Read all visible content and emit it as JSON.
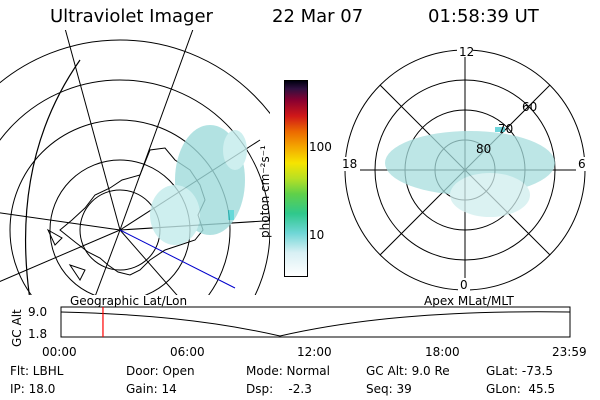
{
  "header": {
    "instrument": "Ultraviolet Imager",
    "date": "22 Mar 07",
    "time": "01:58:39 UT"
  },
  "left_map": {
    "label": "Geographic Lat/Lon"
  },
  "right_map": {
    "label": "Apex MLat/MLT",
    "mlt_labels": [
      "12",
      "18",
      "6",
      "0"
    ],
    "mlat_labels": [
      "60",
      "70",
      "80"
    ]
  },
  "colorbar": {
    "unit_label": "photon cm⁻²s⁻¹",
    "ticks": [
      "100",
      "10"
    ]
  },
  "timeline": {
    "ylabel": "GC Alt",
    "ytick_top": "9.0",
    "ytick_bottom": "1.8",
    "xticks": [
      "00:00",
      "06:00",
      "12:00",
      "18:00",
      "23:59"
    ],
    "marker_time": "01:58:39",
    "marker_color": "#ff0000"
  },
  "status": {
    "row1": [
      {
        "key": "flt",
        "text": "Flt: LBHL"
      },
      {
        "key": "door",
        "text": "Door: Open"
      },
      {
        "key": "mode",
        "text": "Mode: Normal"
      },
      {
        "key": "gcalt",
        "text": "GC Alt: 9.0 Re"
      },
      {
        "key": "glat",
        "text": "GLat: -73.5"
      }
    ],
    "row2": [
      {
        "key": "ip",
        "text": "IP: 18.0"
      },
      {
        "key": "gain",
        "text": "Gain: 14"
      },
      {
        "key": "dsp",
        "text": "Dsp:    -2.3"
      },
      {
        "key": "seq",
        "text": "Seq: 39"
      },
      {
        "key": "glon",
        "text": "GLon:  45.5"
      }
    ]
  },
  "colors": {
    "accent_line": "#0000cc",
    "aurora": "#8fd6d6"
  }
}
